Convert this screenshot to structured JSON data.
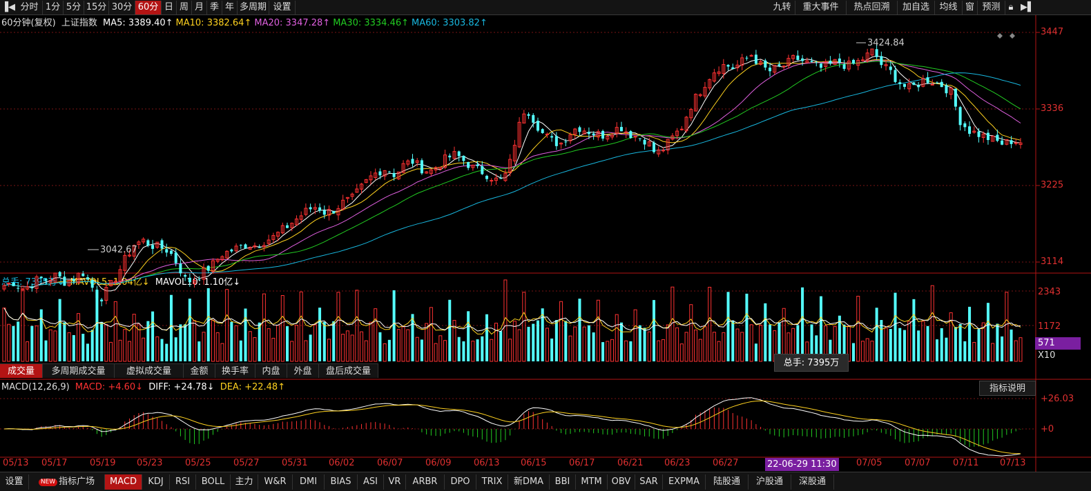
{
  "toolbar": {
    "periods": [
      "分时",
      "1分",
      "5分",
      "15分",
      "30分",
      "60分",
      "日",
      "周",
      "月",
      "季",
      "年",
      "多周期",
      "设置"
    ],
    "active_period": "60分",
    "right_buttons": [
      "九转",
      "重大事件",
      "热点回溯",
      "加自选",
      "均线",
      "窗",
      "预测"
    ]
  },
  "main_info": {
    "period_label": "60分钟(复权)",
    "index_name": "上证指数",
    "ma": [
      {
        "label": "MA5: 3389.40↑",
        "color": "#ffffff"
      },
      {
        "label": "MA10: 3382.64↑",
        "color": "#ffd21f"
      },
      {
        "label": "MA20: 3347.28↑",
        "color": "#e060e0"
      },
      {
        "label": "MA30: 3334.46↑",
        "color": "#22cc22"
      },
      {
        "label": "MA60: 3303.82↑",
        "color": "#18b8e0"
      }
    ]
  },
  "price_axis": [
    "3447",
    "3336",
    "3225",
    "3114"
  ],
  "price_annotations": {
    "high": "3424.84",
    "low": "3042.67"
  },
  "volume_info": {
    "total": "总手: 7395万↓",
    "mavol5": "MAVOL5: 1.04亿↓",
    "mavol10": "MAVOL10: 1.10亿↓"
  },
  "volume_axis": [
    "2343",
    "1172"
  ],
  "volume_badge": "571",
  "volume_unit": "X10",
  "volume_tabs": [
    "成交量",
    "多周期成交量",
    "虚拟成交量",
    "金额",
    "换手率",
    "内盘",
    "外盘",
    "盘后成交量"
  ],
  "active_volume_tab": "成交量",
  "tooltip": "总手: 7395万",
  "macd_info": {
    "name": "MACD(12,26,9)",
    "macd": "MACD: +4.60↓",
    "diff": "DIFF: +24.78↓",
    "dea": "DEA: +22.48↑"
  },
  "macd_axis": [
    "+26.03",
    "+0"
  ],
  "indicator_help": "指标说明",
  "x_dates": [
    "05/13",
    "05/17",
    "05/19",
    "05/23",
    "05/25",
    "05/27",
    "05/31",
    "06/02",
    "06/07",
    "06/09",
    "06/13",
    "06/15",
    "06/17",
    "06/21",
    "06/23",
    "06/27",
    "07/05",
    "07/07",
    "07/11",
    "07/13"
  ],
  "cursor_date": "22-06-29 11:30",
  "bottom_tabs": [
    "设置",
    "指标广场",
    "MACD",
    "KDJ",
    "RSI",
    "BOLL",
    "主力",
    "W&R",
    "DMI",
    "BIAS",
    "ASI",
    "VR",
    "ARBR",
    "DPO",
    "TRIX",
    "新DMA",
    "BBI",
    "MTM",
    "OBV",
    "SAR",
    "EXPMA",
    "陆股通",
    "沪股通",
    "深股通"
  ],
  "active_bottom_tab": "MACD",
  "new_badge": "NEW",
  "colors": {
    "up": "#ff3232",
    "down": "#54ffff",
    "axis": "#b31414"
  },
  "chart_data": {
    "type": "candlestick",
    "price_range": [
      2990,
      3470
    ],
    "close_path": [
      3080,
      3085,
      3075,
      3080,
      3090,
      3088,
      3095,
      3085,
      3090,
      3100,
      3080,
      3060,
      3075,
      3095,
      3120,
      3140,
      3145,
      3138,
      3135,
      3130,
      3110,
      3085,
      3090,
      3100,
      3110,
      3125,
      3130,
      3135,
      3140,
      3138,
      3145,
      3150,
      3160,
      3170,
      3180,
      3190,
      3195,
      3185,
      3190,
      3200,
      3205,
      3220,
      3235,
      3245,
      3250,
      3240,
      3255,
      3260,
      3250,
      3245,
      3255,
      3265,
      3270,
      3260,
      3250,
      3245,
      3238,
      3230,
      3245,
      3300,
      3340,
      3320,
      3300,
      3290,
      3285,
      3300,
      3310,
      3305,
      3300,
      3298,
      3305,
      3310,
      3300,
      3295,
      3290,
      3270,
      3280,
      3295,
      3310,
      3340,
      3360,
      3380,
      3395,
      3400,
      3395,
      3405,
      3415,
      3400,
      3390,
      3395,
      3400,
      3410,
      3405,
      3400,
      3395,
      3400,
      3405,
      3398,
      3402,
      3410,
      3420,
      3400,
      3390,
      3375,
      3365,
      3370,
      3380,
      3375,
      3370,
      3360,
      3320,
      3305,
      3300,
      3295,
      3290,
      3285,
      3290,
      3288
    ],
    "volume_range": [
      0,
      2500
    ],
    "macd_range": [
      -30,
      35
    ]
  }
}
